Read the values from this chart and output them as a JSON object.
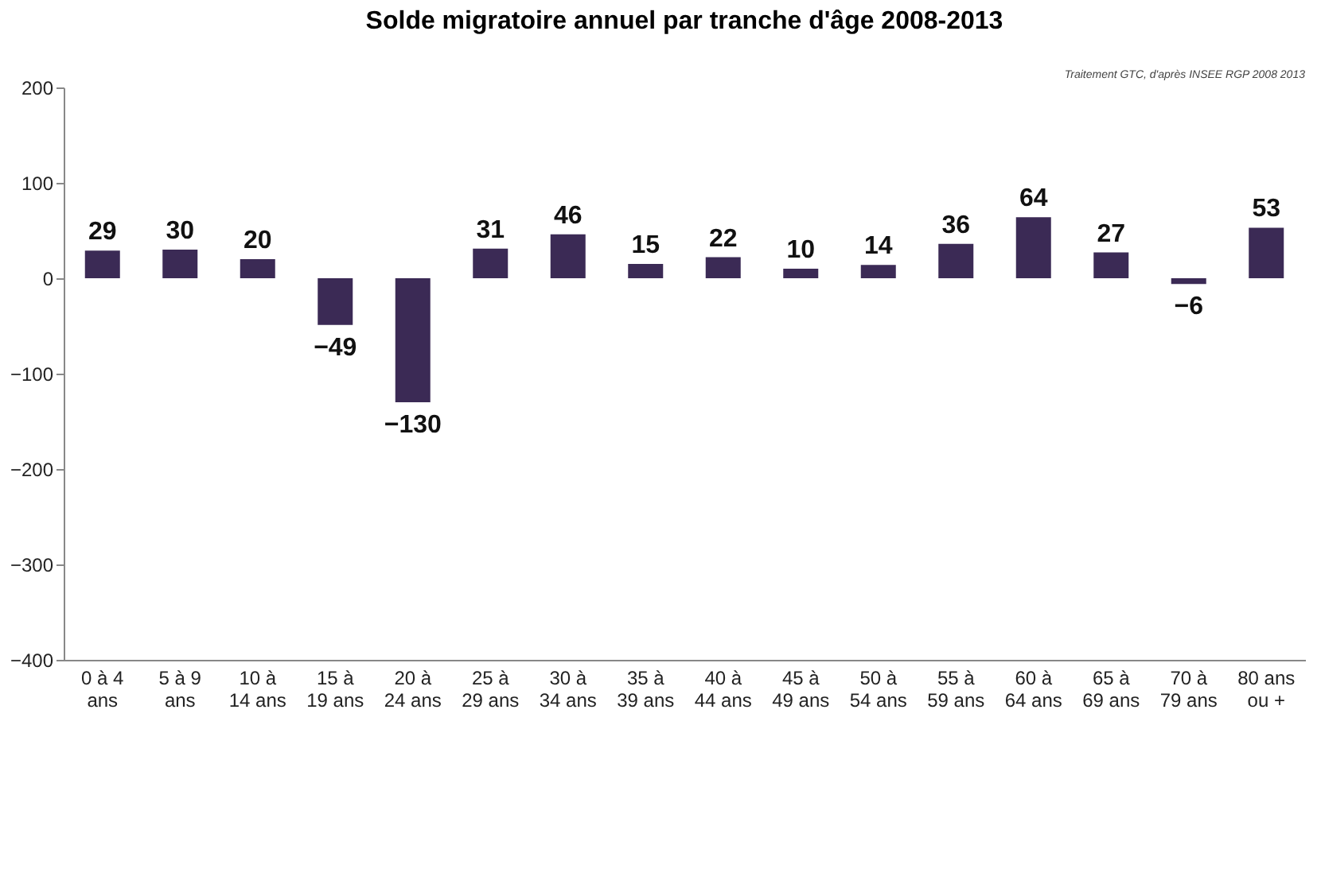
{
  "chart_data": {
    "type": "bar",
    "title": "Solde migratoire annuel par tranche d'âge 2008-2013",
    "annotations": [
      "Traitement GTC, d'après INSEE RGP 2008 2013"
    ],
    "categories": [
      "0 à 4 ans",
      "5 à 9 ans",
      "10 à 14 ans",
      "15 à 19 ans",
      "20 à 24 ans",
      "25 à 29 ans",
      "30 à 34 ans",
      "35 à 39 ans",
      "40 à 44 ans",
      "45 à 49 ans",
      "50 à 54 ans",
      "55 à 59 ans",
      "60 à 64 ans",
      "65 à 69 ans",
      "70 à 79 ans",
      "80 ans ou +"
    ],
    "values": [
      29,
      30,
      20,
      -49,
      -130,
      31,
      46,
      15,
      22,
      10,
      14,
      36,
      64,
      27,
      -6,
      53
    ],
    "color": "#3b2a55",
    "ylim": [
      -400,
      200
    ],
    "yticks": [
      -400,
      -300,
      -200,
      -100,
      0,
      100,
      200
    ],
    "grid": false,
    "data_labels": true
  }
}
